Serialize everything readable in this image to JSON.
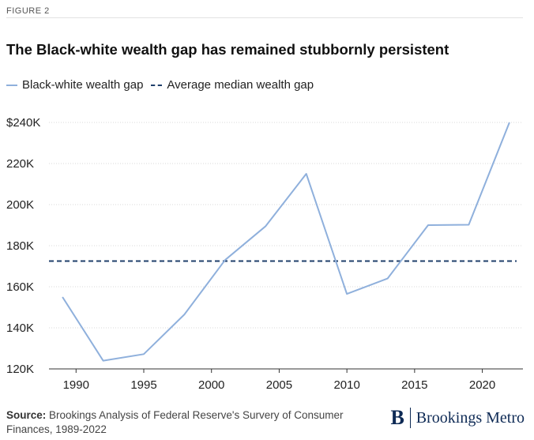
{
  "figure_label": "FIGURE 2",
  "source_label": "Source:",
  "source_text": "Brookings Analysis of Federal Reserve's Survery of Consumer Finances, 1989-2022",
  "brand": {
    "logo": "B",
    "name": "Brookings Metro"
  },
  "colors": {
    "series": "#8fb0dc",
    "average": "#1f3f6b",
    "grid": "#d9d9d9"
  },
  "chart_data": {
    "type": "line",
    "title": "The Black-white wealth gap has remained stubbornly persistent",
    "xlabel": "",
    "ylabel": "",
    "x": [
      1989,
      1992,
      1995,
      1998,
      2001,
      2004,
      2007,
      2010,
      2013,
      2016,
      2019,
      2022
    ],
    "series": [
      {
        "name": "Black-white wealth gap",
        "values": [
          155000,
          124000,
          127200,
          146500,
          173000,
          189500,
          215000,
          156500,
          164000,
          190000,
          190200,
          240000
        ]
      }
    ],
    "reference_lines": [
      {
        "name": "Average median wealth gap",
        "value": 172500,
        "style": "dashed"
      }
    ],
    "xlim": [
      1988,
      2023
    ],
    "ylim": [
      120000,
      240000
    ],
    "x_ticks": [
      1990,
      1995,
      2000,
      2005,
      2010,
      2015,
      2020
    ],
    "x_tick_labels": [
      "1990",
      "1995",
      "2000",
      "2005",
      "2010",
      "2015",
      "2020"
    ],
    "y_ticks": [
      120000,
      140000,
      160000,
      180000,
      200000,
      220000,
      240000
    ],
    "y_tick_labels": [
      "120K",
      "140K",
      "160K",
      "180K",
      "200K",
      "220K",
      "$240K"
    ],
    "grid": "horizontal dotted",
    "legend_position": "top-left"
  }
}
